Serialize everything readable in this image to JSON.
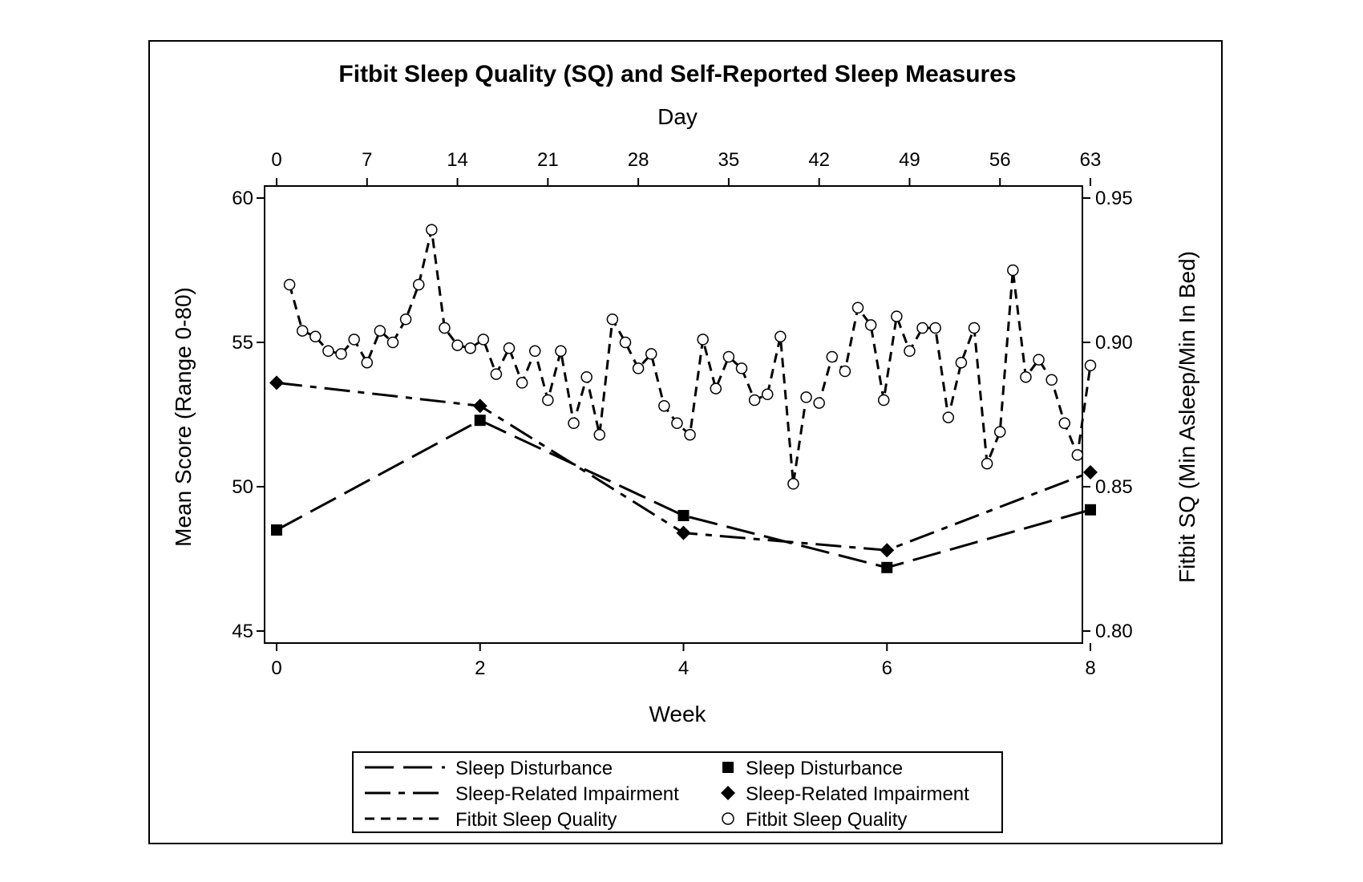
{
  "chart_data": {
    "type": "line",
    "title": "Fitbit Sleep Quality (SQ) and Self-Reported Sleep Measures",
    "xlabel": "Week",
    "xlabel_top": "Day",
    "ylabel": "Mean Score (Range 0-80)",
    "ylabel_right": "Fitbit SQ (Min Asleep/Min In Bed)",
    "xlim": [
      0,
      8
    ],
    "x_top_lim": [
      0,
      63
    ],
    "ylim": [
      45,
      60
    ],
    "ylim_right": [
      0.8,
      0.95
    ],
    "xticks": [
      0,
      2,
      4,
      6,
      8
    ],
    "x_top_ticks": [
      0,
      7,
      14,
      21,
      28,
      35,
      42,
      49,
      56,
      63
    ],
    "yticks": [
      45,
      50,
      55,
      60
    ],
    "yticks_right": [
      "0.80",
      "0.85",
      "0.90",
      "0.95"
    ],
    "grid": false,
    "legend_position": "bottom-center",
    "series": [
      {
        "name": "Sleep Disturbance",
        "axis": "left",
        "x_unit": "week",
        "marker": "square",
        "line": "long-dash",
        "x": [
          0,
          2,
          4,
          6,
          8
        ],
        "y": [
          48.5,
          52.3,
          49.0,
          47.2,
          49.2
        ]
      },
      {
        "name": "Sleep-Related Impairment",
        "axis": "left",
        "x_unit": "week",
        "marker": "diamond",
        "line": "dash-dot",
        "x": [
          0,
          2,
          4,
          6,
          8
        ],
        "y": [
          53.6,
          52.8,
          48.4,
          47.8,
          50.5
        ]
      },
      {
        "name": "Fitbit Sleep Quality",
        "axis": "right",
        "x_unit": "day",
        "marker": "open-circle",
        "line": "short-dash",
        "x": [
          1,
          2,
          3,
          4,
          5,
          6,
          7,
          8,
          9,
          10,
          11,
          12,
          13,
          14,
          15,
          16,
          17,
          18,
          19,
          20,
          21,
          22,
          23,
          24,
          25,
          26,
          27,
          28,
          29,
          30,
          31,
          32,
          33,
          34,
          35,
          36,
          37,
          38,
          39,
          40,
          41,
          42,
          43,
          44,
          45,
          46,
          47,
          48,
          49,
          50,
          51,
          52,
          53,
          54,
          55,
          56,
          57,
          58,
          59,
          60,
          61,
          62,
          63
        ],
        "y": [
          0.92,
          0.904,
          0.902,
          0.897,
          0.896,
          0.901,
          0.893,
          0.904,
          0.9,
          0.908,
          0.92,
          0.939,
          0.905,
          0.899,
          0.898,
          0.901,
          0.889,
          0.898,
          0.886,
          0.897,
          0.88,
          0.897,
          0.872,
          0.888,
          0.868,
          0.908,
          0.9,
          0.891,
          0.896,
          0.878,
          0.872,
          0.868,
          0.901,
          0.884,
          0.895,
          0.891,
          0.88,
          0.882,
          0.902,
          0.851,
          0.881,
          0.879,
          0.895,
          0.89,
          0.912,
          0.906,
          0.88,
          0.909,
          0.897,
          0.905,
          0.905,
          0.874,
          0.893,
          0.905,
          0.858,
          0.869,
          0.925,
          0.888,
          0.894,
          0.887,
          0.872,
          0.861,
          0.892
        ]
      }
    ],
    "legend": {
      "line_entries": [
        "Sleep Disturbance",
        "Sleep-Related Impairment",
        "Fitbit Sleep Quality"
      ],
      "marker_entries": [
        "Sleep Disturbance",
        "Sleep-Related Impairment",
        "Fitbit Sleep Quality"
      ]
    }
  }
}
